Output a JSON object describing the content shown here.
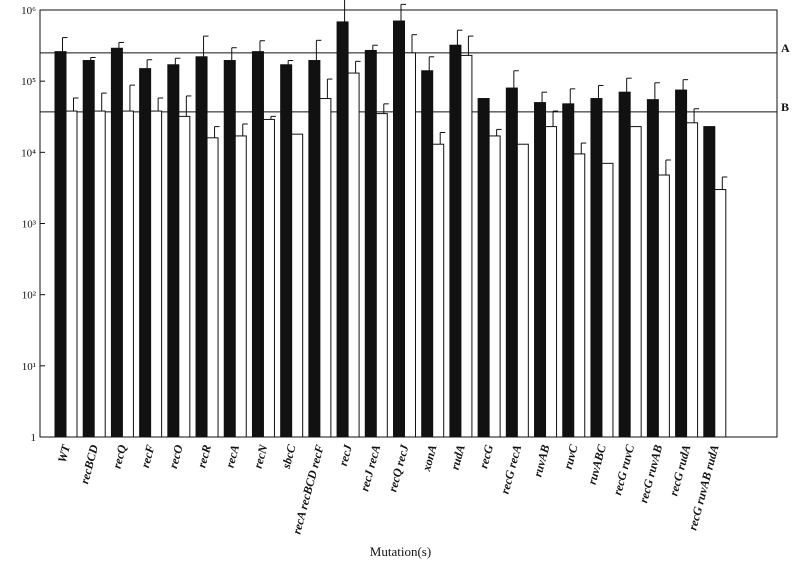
{
  "chart_data": {
    "type": "bar",
    "xlabel": "Mutation(s)",
    "ylabel": "",
    "yscale": "log",
    "ylim": [
      1,
      1000000
    ],
    "y_ticks": [
      {
        "value": 1,
        "label": "1"
      },
      {
        "value": 10,
        "label": "10¹"
      },
      {
        "value": 100,
        "label": "10²"
      },
      {
        "value": 1000,
        "label": "10³"
      },
      {
        "value": 10000,
        "label": "10⁴"
      },
      {
        "value": 100000,
        "label": "10⁵"
      },
      {
        "value": 1000000,
        "label": "10⁶"
      }
    ],
    "categories": [
      "WT",
      "recBCD",
      "recQ",
      "recF",
      "recO",
      "recR",
      "recA",
      "recN",
      "sbcC",
      "recA recBCD recF",
      "recJ",
      "recJ recA",
      "recQ recJ",
      "xonA",
      "rudA",
      "recG",
      "recG recA",
      "ruvAB",
      "ruvC",
      "ruvABC",
      "recG ruvC",
      "recG ruvAB",
      "recG rudA",
      "recG ruvAB rudA"
    ],
    "series": [
      {
        "color": "#111111",
        "values": [
          260000,
          195000,
          290000,
          150000,
          170000,
          220000,
          195000,
          260000,
          170000,
          195000,
          680000,
          270000,
          700000,
          140000,
          320000,
          57000,
          80000,
          50000,
          48000,
          57000,
          70000,
          55000,
          75000,
          23000
        ],
        "errors": [
          150000,
          20000,
          60000,
          50000,
          40000,
          210000,
          100000,
          110000,
          25000,
          180000,
          750000,
          50000,
          500000,
          80000,
          200000,
          0,
          60000,
          20000,
          30000,
          30000,
          40000,
          40000,
          30000,
          0
        ]
      },
      {
        "color": "#ffffff",
        "values": [
          38000,
          38000,
          38000,
          38000,
          32000,
          16000,
          17000,
          29000,
          18000,
          57000,
          130000,
          35000,
          250000,
          13000,
          230000,
          17000,
          13000,
          23000,
          9500,
          7000,
          23000,
          4800,
          26000,
          3000
        ],
        "errors": [
          20000,
          30000,
          50000,
          20000,
          30000,
          7000,
          8000,
          3000,
          0,
          50000,
          60000,
          13000,
          200000,
          6000,
          200000,
          4000,
          0,
          15000,
          4000,
          0,
          0,
          3000,
          15000,
          1500
        ]
      }
    ],
    "reference_lines": [
      {
        "label": "A",
        "value": 250000
      },
      {
        "label": "B",
        "value": 37000
      }
    ],
    "grid": false,
    "legend": "none"
  }
}
